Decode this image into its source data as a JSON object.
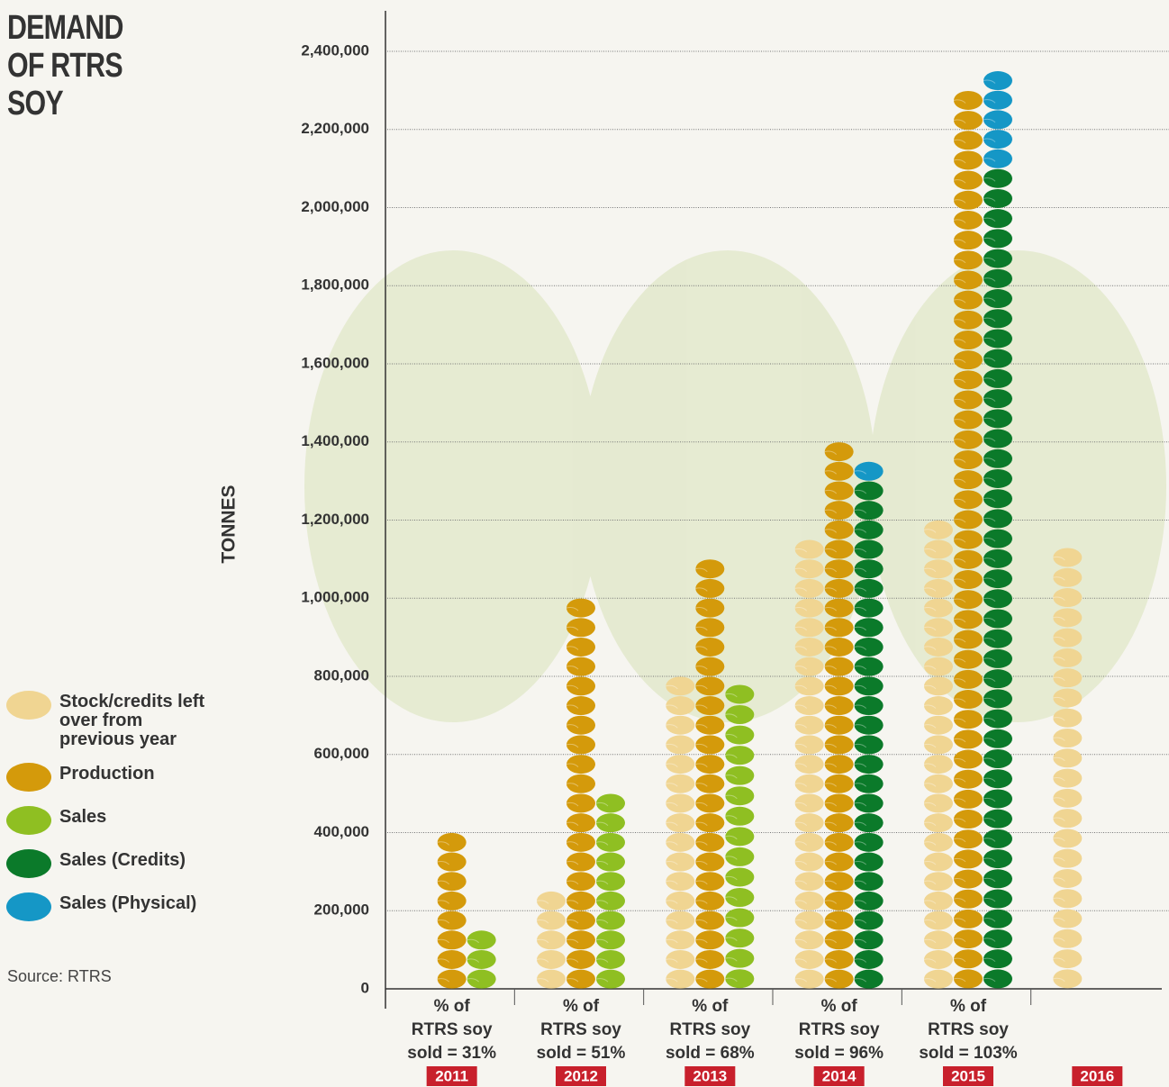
{
  "chart_data": {
    "type": "pictogram",
    "title": "DEMAND OF RTRS SOY",
    "y_label": "TONNES",
    "source": "Source: RTRS",
    "categories": [
      "2011",
      "2012",
      "2013",
      "2014",
      "2015",
      "2016"
    ],
    "notes": [
      [
        "% of",
        "RTRS soy",
        "sold = 31%"
      ],
      [
        "% of",
        "RTRS soy",
        "sold = 51%"
      ],
      [
        "% of",
        "RTRS soy",
        "sold = 68%"
      ],
      [
        "% of",
        "RTRS soy",
        "sold = 96%"
      ],
      [
        "% of",
        "RTRS soy",
        "sold = 103%"
      ],
      null
    ],
    "series": [
      {
        "name": "Stock/credits left over from previous year",
        "color": "#f0d592",
        "column": 0,
        "values": [
          null,
          250000,
          800000,
          1150000,
          1200000,
          1130000
        ]
      },
      {
        "name": "Production",
        "color": "#d49a0b",
        "column": 1,
        "values": [
          400000,
          1000000,
          1100000,
          1400000,
          2300000,
          null
        ]
      },
      {
        "name": "Sales",
        "color": "#8fbf22",
        "column": 2,
        "values": [
          150000,
          500000,
          780000,
          null,
          null,
          null
        ]
      },
      {
        "name": "Sales (Credits)",
        "color": "#0b7a2a",
        "column": 2,
        "values": [
          null,
          null,
          null,
          1300000,
          2100000,
          null
        ]
      },
      {
        "name": "Sales (Physical)",
        "color": "#1597c6",
        "column": 2,
        "values": [
          null,
          null,
          null,
          50000,
          250000,
          null
        ]
      }
    ],
    "ylim": [
      0,
      2400000
    ],
    "yticks": [
      0,
      {
        "value": 200000,
        "label": "200,000"
      },
      {
        "value": 400000,
        "label": "400,000"
      },
      {
        "value": 600000,
        "label": "600,000"
      },
      {
        "value": 800000,
        "label": "800,000"
      },
      {
        "value": 1000000,
        "label": "1,000,000"
      },
      {
        "value": 1200000,
        "label": "1,200,000"
      },
      {
        "value": 1400000,
        "label": "1,400,000"
      },
      {
        "value": 1600000,
        "label": "1,600,000"
      },
      {
        "value": 1800000,
        "label": "1,800,000"
      },
      {
        "value": 2000000,
        "label": "2,000,000"
      },
      {
        "value": 2200000,
        "label": "2,200,000"
      },
      {
        "value": 2400000,
        "label": "2,400,000"
      }
    ],
    "grid": true
  }
}
